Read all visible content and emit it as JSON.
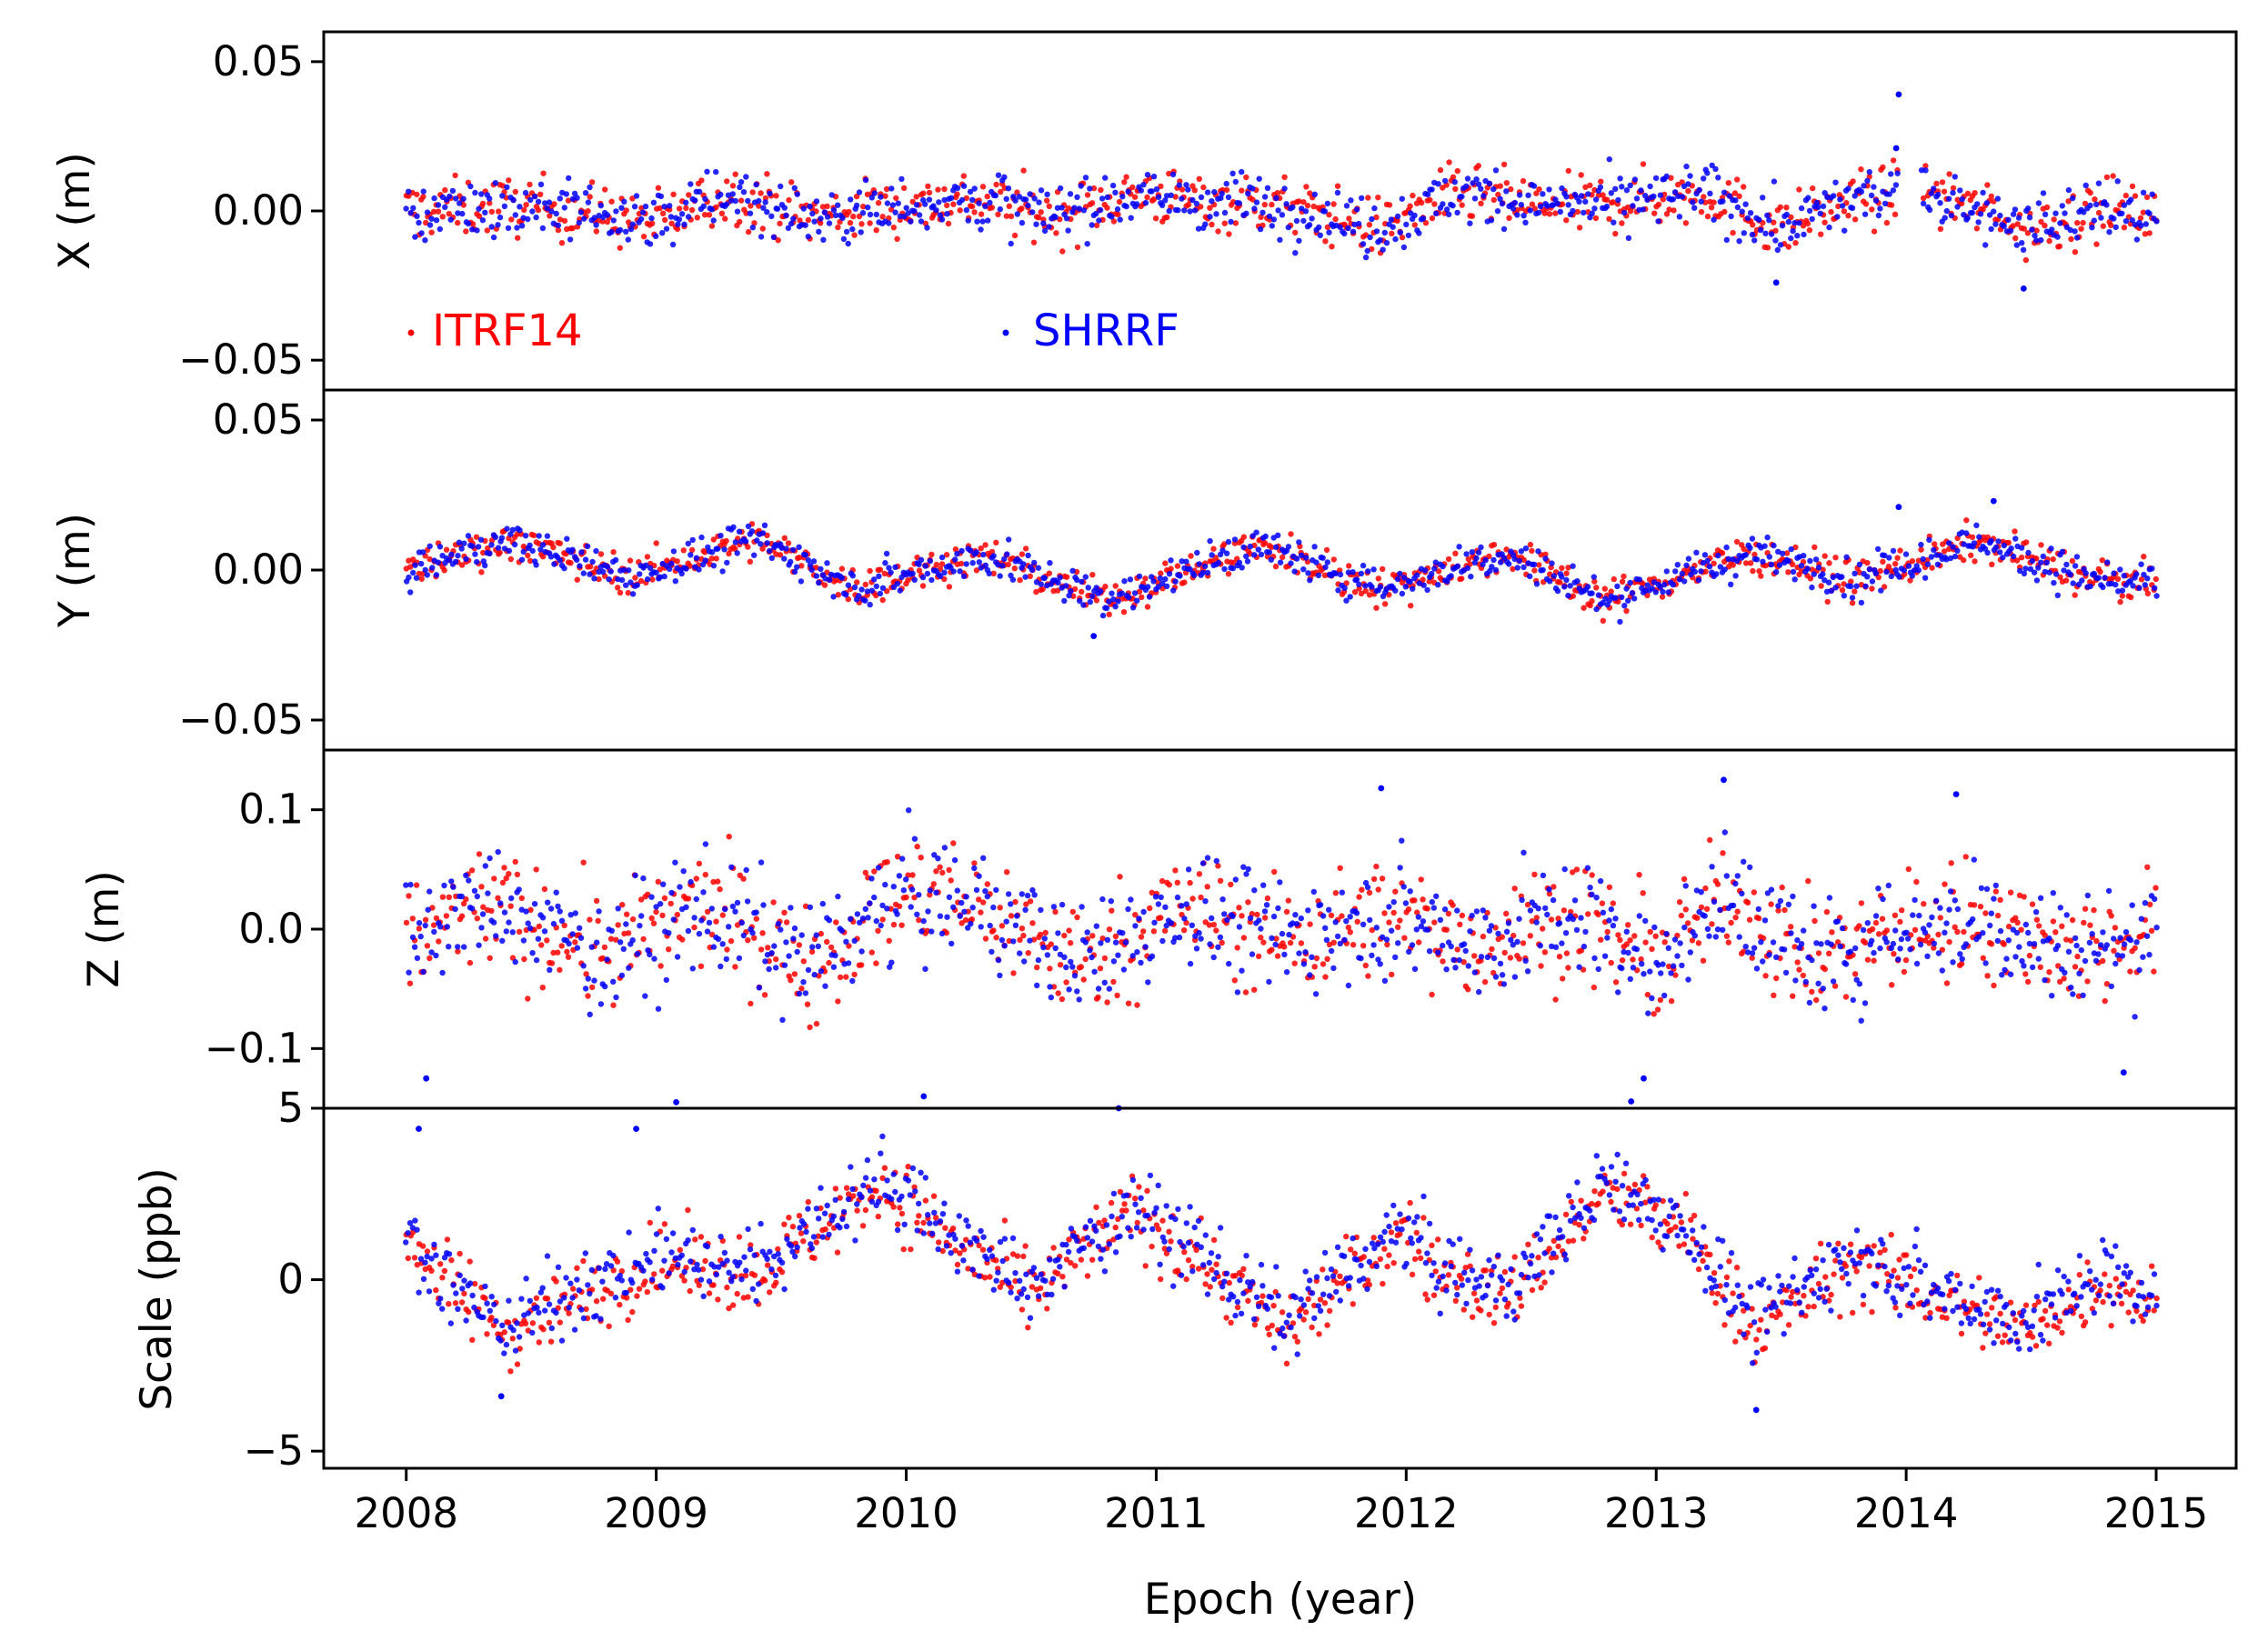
{
  "chart_data": {
    "type": "scatter",
    "figure_title": "",
    "xlabel": "Epoch (year)",
    "xlim": [
      2007.67,
      2015.32
    ],
    "x_ticks": [
      2008,
      2009,
      2010,
      2011,
      2012,
      2013,
      2014,
      2015
    ],
    "x_tick_labels": [
      "2008",
      "2009",
      "2010",
      "2011",
      "2012",
      "2013",
      "2014",
      "2015"
    ],
    "sampling": "daily, 2008.0 to 2015.0 (series below summarized as smoothed mean curve + typical spread)",
    "legend": [
      {
        "name": "ITRF14",
        "color": "#ff0000",
        "placement": "lower-left of top panel"
      },
      {
        "name": "SHRRF",
        "color": "#0000ff",
        "placement": "lower-center of top panel"
      }
    ],
    "colors": {
      "ITRF14": "#ff0000",
      "SHRRF": "#0000ff"
    },
    "panels": [
      {
        "id": "x",
        "ylabel": "X (m)",
        "ylim": [
          -0.06,
          0.06
        ],
        "y_ticks": [
          0.05,
          0.0,
          -0.05
        ],
        "y_tick_labels": [
          "0.05",
          "0.00",
          "−0.05"
        ],
        "series": [
          {
            "name": "ITRF14",
            "trend": {
              "x": [
                2008.0,
                2008.5,
                2009.0,
                2009.3,
                2009.6,
                2010.0,
                2010.3,
                2010.6,
                2010.9,
                2011.2,
                2011.5,
                2011.9,
                2012.2,
                2012.6,
                2012.9,
                2013.2,
                2013.5,
                2013.8,
                2014.1,
                2014.5,
                2014.8,
                2015.0
              ],
              "y": [
                0.0,
                0.002,
                -0.004,
                0.006,
                -0.002,
                0.002,
                0.004,
                -0.002,
                0.006,
                0.003,
                0.002,
                -0.006,
                0.006,
                0.001,
                0.003,
                0.006,
                -0.006,
                0.004,
                0.006,
                -0.006,
                0.002,
                -0.003
              ]
            },
            "spread": 0.007
          },
          {
            "name": "SHRRF",
            "trend": {
              "x": [
                2008.0,
                2008.5,
                2009.0,
                2009.3,
                2009.6,
                2010.0,
                2010.3,
                2010.6,
                2010.9,
                2011.2,
                2011.5,
                2011.9,
                2012.2,
                2012.6,
                2012.9,
                2013.2,
                2013.5,
                2013.8,
                2014.1,
                2014.5,
                2014.8,
                2015.0
              ],
              "y": [
                0.0,
                0.002,
                -0.004,
                0.006,
                -0.002,
                0.002,
                0.004,
                -0.002,
                0.006,
                0.003,
                0.002,
                -0.006,
                0.006,
                0.001,
                0.003,
                0.006,
                -0.006,
                0.004,
                0.006,
                -0.006,
                0.002,
                -0.003
              ]
            },
            "spread": 0.007
          }
        ],
        "outliers": [
          {
            "x": 2013.97,
            "y": 0.039
          },
          {
            "x": 2013.96,
            "y": 0.021
          },
          {
            "x": 2013.48,
            "y": -0.024
          },
          {
            "x": 2014.47,
            "y": -0.026
          }
        ]
      },
      {
        "id": "y",
        "ylabel": "Y (m)",
        "ylim": [
          -0.06,
          0.06
        ],
        "y_ticks": [
          0.05,
          0.0,
          -0.05
        ],
        "y_tick_labels": [
          "0.05",
          "0.00",
          "−0.05"
        ],
        "series": [
          {
            "name": "ITRF14",
            "trend": {
              "x": [
                2008.0,
                2008.4,
                2008.9,
                2009.4,
                2009.8,
                2010.3,
                2010.8,
                2011.4,
                2011.9,
                2012.4,
                2012.8,
                2013.4,
                2013.8,
                2014.3,
                2014.7,
                2015.0
              ],
              "y": [
                0.0,
                0.01,
                -0.002,
                0.01,
                -0.006,
                0.005,
                -0.01,
                0.008,
                -0.006,
                0.006,
                -0.01,
                0.006,
                -0.004,
                0.01,
                -0.002,
                -0.005
              ]
            },
            "spread": 0.0045
          },
          {
            "name": "SHRRF",
            "trend": {
              "x": [
                2008.0,
                2008.4,
                2008.9,
                2009.4,
                2009.8,
                2010.3,
                2010.8,
                2011.4,
                2011.9,
                2012.4,
                2012.8,
                2013.4,
                2013.8,
                2014.3,
                2014.7,
                2015.0
              ],
              "y": [
                0.0,
                0.01,
                -0.002,
                0.01,
                -0.006,
                0.005,
                -0.01,
                0.008,
                -0.006,
                0.006,
                -0.01,
                0.006,
                -0.004,
                0.01,
                -0.002,
                -0.005
              ]
            },
            "spread": 0.0045
          }
        ],
        "outliers": [
          {
            "x": 2013.97,
            "y": 0.021
          },
          {
            "x": 2014.35,
            "y": 0.023
          },
          {
            "x": 2010.75,
            "y": -0.022
          }
        ]
      },
      {
        "id": "z",
        "ylabel": "Z (m)",
        "ylim": [
          -0.15,
          0.15
        ],
        "y_ticks": [
          0.1,
          0.0,
          -0.1
        ],
        "y_tick_labels": [
          "0.1",
          "0.0",
          "−0.1"
        ],
        "series": [
          {
            "name": "ITRF14",
            "trend": {
              "x": [
                2008.0,
                2008.3,
                2008.8,
                2009.2,
                2009.6,
                2010.0,
                2010.3,
                2010.7,
                2011.1,
                2011.5,
                2011.9,
                2012.3,
                2012.7,
                2013.0,
                2013.3,
                2013.6,
                2014.0,
                2014.3,
                2014.7,
                2015.0
              ],
              "y": [
                -0.01,
                0.02,
                -0.02,
                0.02,
                -0.03,
                0.03,
                0.02,
                -0.03,
                0.02,
                -0.01,
                0.01,
                -0.01,
                0.01,
                -0.03,
                0.03,
                -0.03,
                0.0,
                0.01,
                -0.02,
                0.0
              ]
            },
            "spread": 0.035
          },
          {
            "name": "SHRRF",
            "trend": {
              "x": [
                2008.0,
                2008.3,
                2008.8,
                2009.2,
                2009.6,
                2010.0,
                2010.3,
                2010.7,
                2011.1,
                2011.5,
                2011.9,
                2012.3,
                2012.7,
                2013.0,
                2013.3,
                2013.6,
                2014.0,
                2014.3,
                2014.7,
                2015.0
              ],
              "y": [
                -0.01,
                0.02,
                -0.02,
                0.02,
                -0.03,
                0.03,
                0.02,
                -0.03,
                0.02,
                -0.01,
                0.01,
                -0.01,
                0.01,
                -0.03,
                0.03,
                -0.03,
                0.0,
                0.01,
                -0.02,
                0.0
              ]
            },
            "spread": 0.035
          }
        ],
        "outliers": [
          {
            "x": 2013.27,
            "y": 0.125
          },
          {
            "x": 2011.9,
            "y": 0.118
          },
          {
            "x": 2014.2,
            "y": 0.113
          },
          {
            "x": 2008.08,
            "y": -0.125
          },
          {
            "x": 2009.08,
            "y": -0.145
          },
          {
            "x": 2010.07,
            "y": -0.14
          },
          {
            "x": 2012.95,
            "y": -0.125
          },
          {
            "x": 2014.87,
            "y": -0.12
          }
        ]
      },
      {
        "id": "scale",
        "ylabel": "Scale (ppb)",
        "ylim": [
          -5.5,
          5.0
        ],
        "y_ticks": [
          5,
          0,
          -5
        ],
        "y_tick_labels": [
          "5",
          "0",
          "−5"
        ],
        "series": [
          {
            "name": "ITRF14",
            "trend": {
              "x": [
                2008.0,
                2008.15,
                2008.4,
                2008.7,
                2009.0,
                2009.4,
                2009.9,
                2010.2,
                2010.5,
                2010.9,
                2011.2,
                2011.5,
                2011.8,
                2012.0,
                2012.1,
                2012.4,
                2012.8,
                2013.1,
                2013.4,
                2013.8,
                2014.1,
                2014.5,
                2014.8,
                2015.0
              ],
              "y": [
                1.5,
                0.0,
                -1.5,
                -0.5,
                0.5,
                0.2,
                2.8,
                1.0,
                -0.5,
                2.0,
                0.5,
                -1.5,
                0.2,
                1.5,
                0.3,
                -0.5,
                2.5,
                1.5,
                -1.5,
                0.5,
                -0.5,
                -1.5,
                0.0,
                -0.8
              ]
            },
            "spread": 0.8
          },
          {
            "name": "SHRRF",
            "trend": {
              "x": [
                2008.0,
                2008.15,
                2008.4,
                2008.7,
                2009.0,
                2009.4,
                2009.9,
                2010.2,
                2010.5,
                2010.9,
                2011.2,
                2011.5,
                2011.8,
                2012.0,
                2012.1,
                2012.4,
                2012.8,
                2013.1,
                2013.4,
                2013.8,
                2014.1,
                2014.5,
                2014.8,
                2015.0
              ],
              "y": [
                1.5,
                0.0,
                -1.3,
                -0.3,
                0.7,
                0.4,
                3.0,
                1.2,
                -0.3,
                2.2,
                0.7,
                -1.2,
                0.4,
                1.6,
                0.5,
                -0.3,
                2.8,
                1.7,
                -1.3,
                0.8,
                -0.3,
                -1.2,
                0.2,
                -0.6
              ]
            },
            "spread": 0.8
          }
        ],
        "outliers": [
          {
            "x": 2010.85,
            "y": 5.0
          },
          {
            "x": 2012.9,
            "y": 5.2
          },
          {
            "x": 2008.92,
            "y": 4.4
          },
          {
            "x": 2008.05,
            "y": 4.4
          },
          {
            "x": 2013.4,
            "y": -3.8
          },
          {
            "x": 2008.38,
            "y": -3.4
          }
        ]
      }
    ]
  }
}
